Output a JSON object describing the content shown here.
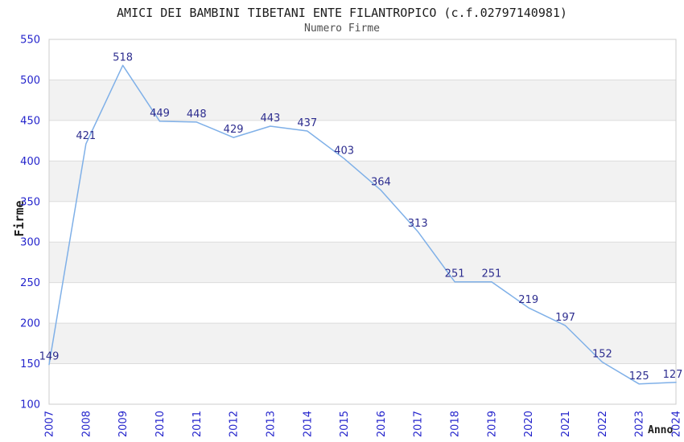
{
  "chart_data": {
    "type": "line",
    "title": "AMICI DEI BAMBINI TIBETANI ENTE FILANTROPICO (c.f.02797140981)",
    "subtitle": "Numero Firme",
    "xlabel": "Anno",
    "ylabel": "Firme",
    "categories": [
      "2007",
      "2008",
      "2009",
      "2010",
      "2011",
      "2012",
      "2013",
      "2014",
      "2015",
      "2016",
      "2017",
      "2018",
      "2019",
      "2020",
      "2021",
      "2022",
      "2023",
      "2024"
    ],
    "values": [
      149,
      421,
      518,
      449,
      448,
      429,
      443,
      437,
      403,
      364,
      313,
      251,
      251,
      219,
      197,
      152,
      125,
      127
    ],
    "ylim": [
      100,
      550
    ],
    "yticks": [
      100,
      150,
      200,
      250,
      300,
      350,
      400,
      450,
      500,
      550
    ],
    "grid": "horizontal",
    "alternating_bands": true,
    "legend_position": "none",
    "point_labels_visible": true,
    "colors": {
      "line": "#7fb0e8",
      "point_label": "#2d2d8f",
      "tick_label": "#2424cc",
      "band": "#f2f2f2",
      "gridline": "#dcdcdc",
      "plot_border": "#cdcdcd",
      "title_text": "#1c1c1c",
      "subtitle_text": "#4f4f4f",
      "background": "#ffffff"
    }
  }
}
